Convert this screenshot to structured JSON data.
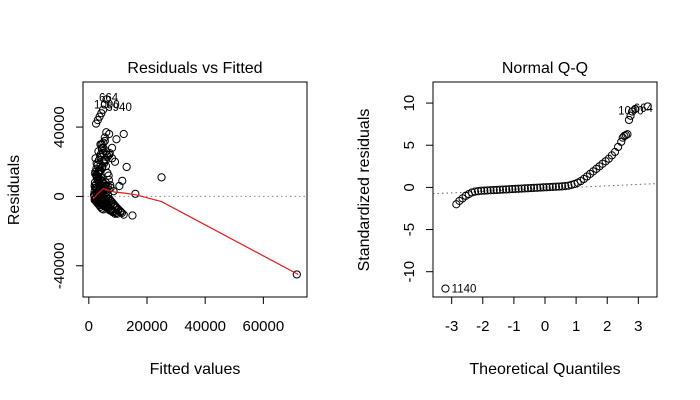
{
  "chart_data": [
    {
      "type": "scatter",
      "title": "Residuals vs Fitted",
      "xlabel": "Fitted values",
      "ylabel": "Residuals",
      "xlim": [
        -2000,
        75000
      ],
      "ylim": [
        -58000,
        66000
      ],
      "xticks": [
        0,
        20000,
        40000,
        60000
      ],
      "xtick_labels": [
        "0",
        "20000",
        "40000",
        "60000"
      ],
      "yticks": [
        -40000,
        0,
        40000
      ],
      "ytick_labels": [
        "-40000",
        "0",
        "40000"
      ],
      "reference_line": {
        "y": 0,
        "style": "dotted",
        "color": "#888888"
      },
      "smooth_line": {
        "color": "#e31a1c",
        "x": [
          1500,
          3000,
          5000,
          7000,
          9000,
          12000,
          16000,
          25000,
          72000
        ],
        "y": [
          -1500,
          1500,
          4500,
          3500,
          2500,
          2000,
          1000,
          -3000,
          -45000
        ]
      },
      "points": {
        "x": [
          71500,
          25000,
          16000,
          15000,
          13000,
          12000,
          11500,
          11000,
          10500,
          10000,
          9500,
          9000,
          8500,
          8000,
          7500,
          7000,
          6800,
          6500,
          6200,
          6000,
          5800,
          5500,
          5200,
          5000,
          4800,
          4500,
          4200,
          4000,
          3800,
          3500,
          3200,
          3000,
          2800,
          2500,
          2200,
          2000,
          1800,
          2600,
          3100,
          3600,
          4100,
          4600,
          5100,
          5600,
          6100,
          6600,
          7100,
          7600,
          8100,
          8600,
          9100,
          2300,
          2700,
          3300,
          3900,
          4400,
          4900,
          5400,
          5900,
          6400,
          6900,
          7400,
          1900,
          2100,
          2400,
          2900,
          3400,
          3700,
          4300,
          4700,
          5300,
          5700,
          6300,
          6700,
          7300,
          7800,
          8300,
          8800,
          9300,
          9800,
          2200,
          2600,
          3000,
          3500,
          4000,
          4500,
          5000,
          5500,
          6000,
          2000,
          2500,
          3000,
          3500,
          4000,
          4500,
          5000,
          2100,
          2700,
          3300,
          3900,
          4600,
          5200,
          5900,
          6500,
          7200,
          2000,
          2400,
          2800,
          3200,
          3600,
          4000,
          4400,
          2300,
          2900,
          3500,
          4200,
          5000,
          5800,
          6600,
          7400,
          8200,
          9000,
          2500,
          3100,
          3700,
          4300,
          4900,
          5500,
          6100,
          3000,
          3600,
          4200,
          4800,
          5400,
          6000,
          6600,
          7200,
          7800,
          8400,
          9000,
          9600,
          10200,
          10800,
          11400,
          12000,
          4000,
          5000,
          6000,
          7000,
          8000,
          9000,
          3500,
          4500,
          5500,
          6500,
          7500,
          2800,
          3800,
          4800,
          5800,
          6800,
          4200,
          5200,
          6200,
          7200,
          4000,
          3000,
          2000,
          5000,
          6000,
          2500,
          3500,
          4500,
          3300,
          2200
        ],
        "y": [
          -45000,
          11000,
          1500,
          -11000,
          17000,
          36000,
          9000,
          -9000,
          6000,
          -8000,
          33000,
          -6000,
          3000,
          28000,
          -5000,
          36000,
          12000,
          -4000,
          24000,
          -3000,
          8000,
          32000,
          -2000,
          20000,
          6000,
          27000,
          -1000,
          18000,
          4000,
          15000,
          -500,
          10000,
          2000,
          7000,
          5000,
          3000,
          1000,
          12500,
          9500,
          14000,
          11000,
          16500,
          7500,
          5000,
          2500,
          1000,
          -1500,
          -2500,
          -3500,
          -4500,
          -5500,
          22000,
          19000,
          26000,
          23000,
          30000,
          25000,
          21000,
          17500,
          13500,
          9500,
          6500,
          500,
          -1500,
          -2500,
          -3000,
          -3500,
          -4000,
          -4500,
          -5000,
          -5500,
          -6000,
          -6500,
          -7000,
          -7500,
          -8000,
          -8500,
          -9000,
          -9500,
          -10000,
          14000,
          16000,
          18000,
          21000,
          24000,
          28000,
          31000,
          34000,
          37000,
          -2000,
          -3000,
          -4000,
          -5000,
          -6000,
          -7000,
          -7500,
          8000,
          11000,
          13000,
          15000,
          17000,
          19000,
          21000,
          23000,
          25000,
          6000,
          5000,
          4000,
          3000,
          2000,
          1000,
          0,
          -1000,
          -2000,
          -3000,
          -4000,
          -5000,
          -6000,
          -7000,
          -8000,
          -9000,
          -10000,
          42000,
          44000,
          46000,
          48000,
          50000,
          53000,
          56000,
          4500,
          3500,
          2500,
          1500,
          500,
          -500,
          -1500,
          -2500,
          -3500,
          -4500,
          -5500,
          -6500,
          -7500,
          -8500,
          -9500,
          -10500,
          30000,
          28000,
          26000,
          24000,
          22000,
          20000,
          9000,
          8000,
          7000,
          6000,
          5000,
          12000,
          10000,
          8000,
          6000,
          4000,
          -2000,
          -4000,
          -6000,
          -8000,
          2000,
          1000,
          0,
          3000,
          4000,
          5000,
          7000,
          9000,
          11000,
          13000
        ]
      },
      "annotations": [
        {
          "label": "664",
          "x": 3500,
          "y": 57000
        },
        {
          "label": "1090",
          "x": 1800,
          "y": 53000
        },
        {
          "label": "5940",
          "x": 6000,
          "y": 51500
        }
      ]
    },
    {
      "type": "scatter",
      "title": "Normal Q-Q",
      "xlabel": "Theoretical Quantiles",
      "ylabel": "Standardized residuals",
      "xlim": [
        -3.6,
        3.6
      ],
      "ylim": [
        -13,
        12.5
      ],
      "xticks": [
        -3,
        -2,
        -1,
        0,
        1,
        2,
        3
      ],
      "xtick_labels": [
        "-3",
        "-2",
        "-1",
        "0",
        "1",
        "2",
        "3"
      ],
      "yticks": [
        -10,
        -5,
        0,
        5,
        10
      ],
      "ytick_labels": [
        "-10",
        "-5",
        "0",
        "5",
        "10"
      ],
      "reference_line": {
        "x": [
          -3.6,
          3.6
        ],
        "y": [
          -0.75,
          0.45
        ],
        "style": "dotted",
        "color": "#666666"
      },
      "points": {
        "x": [
          -3.2,
          -2.85,
          -2.75,
          -2.65,
          -2.55,
          -2.45,
          -2.35,
          -2.25,
          -2.15,
          -2.05,
          -1.95,
          -1.85,
          -1.75,
          -1.65,
          -1.55,
          -1.45,
          -1.35,
          -1.25,
          -1.15,
          -1.05,
          -0.95,
          -0.85,
          -0.75,
          -0.65,
          -0.55,
          -0.45,
          -0.35,
          -0.25,
          -0.15,
          -0.05,
          0.05,
          0.15,
          0.25,
          0.35,
          0.45,
          0.55,
          0.65,
          0.75,
          0.85,
          0.95,
          1.05,
          1.15,
          1.25,
          1.35,
          1.45,
          1.55,
          1.65,
          1.75,
          1.85,
          1.95,
          2.05,
          2.15,
          2.25,
          2.35,
          2.45,
          2.5,
          2.55,
          2.6,
          2.65,
          2.7,
          2.75,
          2.8,
          2.9,
          3.3
        ],
        "y": [
          -12,
          -2.0,
          -1.6,
          -1.3,
          -1.0,
          -0.8,
          -0.6,
          -0.5,
          -0.45,
          -0.4,
          -0.38,
          -0.36,
          -0.34,
          -0.32,
          -0.3,
          -0.28,
          -0.26,
          -0.24,
          -0.22,
          -0.2,
          -0.18,
          -0.16,
          -0.14,
          -0.12,
          -0.1,
          -0.08,
          -0.06,
          -0.04,
          -0.02,
          0.0,
          0.02,
          0.04,
          0.06,
          0.08,
          0.1,
          0.12,
          0.15,
          0.2,
          0.3,
          0.4,
          0.55,
          0.75,
          1.0,
          1.3,
          1.6,
          1.9,
          2.2,
          2.5,
          2.8,
          3.1,
          3.4,
          3.8,
          4.2,
          4.8,
          5.4,
          5.9,
          6.1,
          6.2,
          6.3,
          8.0,
          8.5,
          9.0,
          9.3,
          9.6
        ]
      },
      "annotations": [
        {
          "label": "664",
          "x": 2.85,
          "y": 9.4
        },
        {
          "label": "1090",
          "x": 2.35,
          "y": 9.1
        },
        {
          "label": "1140",
          "x": -3.0,
          "y": -12
        }
      ]
    }
  ]
}
